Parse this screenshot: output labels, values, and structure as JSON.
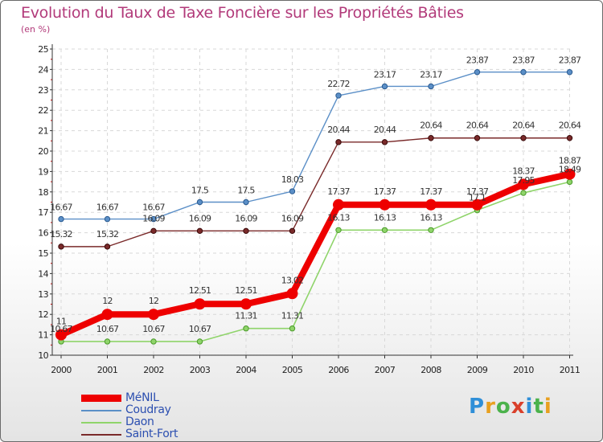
{
  "page": {
    "title": "Evolution du Taux de Taxe Foncière sur les Propriétés Bâties",
    "subtitle": "(en %)"
  },
  "logo": {
    "letters": [
      "P",
      "r",
      "o",
      "x",
      "i",
      "t",
      "i"
    ],
    "colors": [
      "#2f8fd8",
      "#e8a020",
      "#4bb24b",
      "#d9402b",
      "#2f8fd8",
      "#4bb24b",
      "#e8a020"
    ]
  },
  "chart_data": {
    "type": "line",
    "title": "Evolution du Taux de Taxe Foncière sur les Propriétés Bâties",
    "ylabel": "(en %)",
    "xlabel": "",
    "ylim": [
      10,
      25
    ],
    "yticks": [
      10,
      11,
      12,
      13,
      14,
      15,
      16,
      17,
      18,
      19,
      20,
      21,
      22,
      23,
      24,
      25
    ],
    "categories": [
      "2000",
      "2001",
      "2002",
      "2003",
      "2004",
      "2005",
      "2006",
      "2007",
      "2008",
      "2009",
      "2010",
      "2011"
    ],
    "legend_position": "bottom-left",
    "series": [
      {
        "name": "Coudray",
        "color": "#5b8fc7",
        "values": [
          16.67,
          16.67,
          16.67,
          17.5,
          17.5,
          18.03,
          22.72,
          23.17,
          23.17,
          23.87,
          23.87,
          23.87
        ],
        "labels": [
          "16.67",
          "16.67",
          "16.67",
          "17.5",
          "17.5",
          "18.03",
          "22.72",
          "23.17",
          "23.17",
          "23.87",
          "23.87",
          "23.87"
        ]
      },
      {
        "name": "Saint-Fort",
        "color": "#7a2a2a",
        "values": [
          15.32,
          15.32,
          16.09,
          16.09,
          16.09,
          16.09,
          20.44,
          20.44,
          20.64,
          20.64,
          20.64,
          20.64
        ],
        "labels": [
          "15.32",
          "15.32",
          "16.09",
          "16.09",
          "16.09",
          "16.09",
          "20.44",
          "20.44",
          "20.64",
          "20.64",
          "20.64",
          "20.64"
        ]
      },
      {
        "name": "Daon",
        "color": "#8fd46a",
        "values": [
          10.67,
          10.67,
          10.67,
          10.67,
          11.31,
          11.31,
          16.13,
          16.13,
          16.13,
          17.1,
          17.95,
          18.49
        ],
        "labels": [
          "10.67",
          "10.67",
          "10.67",
          "10.67",
          "11.31",
          "11.31",
          "16.13",
          "16.13",
          "16.13",
          "17.1",
          "17.95",
          "18.49"
        ]
      },
      {
        "name": "MéNIL",
        "color": "#ee0000",
        "values": [
          11,
          12,
          12,
          12.51,
          12.51,
          13.02,
          17.37,
          17.37,
          17.37,
          17.37,
          18.37,
          18.87
        ],
        "labels": [
          "11",
          "12",
          "12",
          "12.51",
          "12.51",
          "13.02",
          "17.37",
          "17.37",
          "17.37",
          "17.37",
          "18.37",
          "18.87"
        ]
      }
    ]
  }
}
